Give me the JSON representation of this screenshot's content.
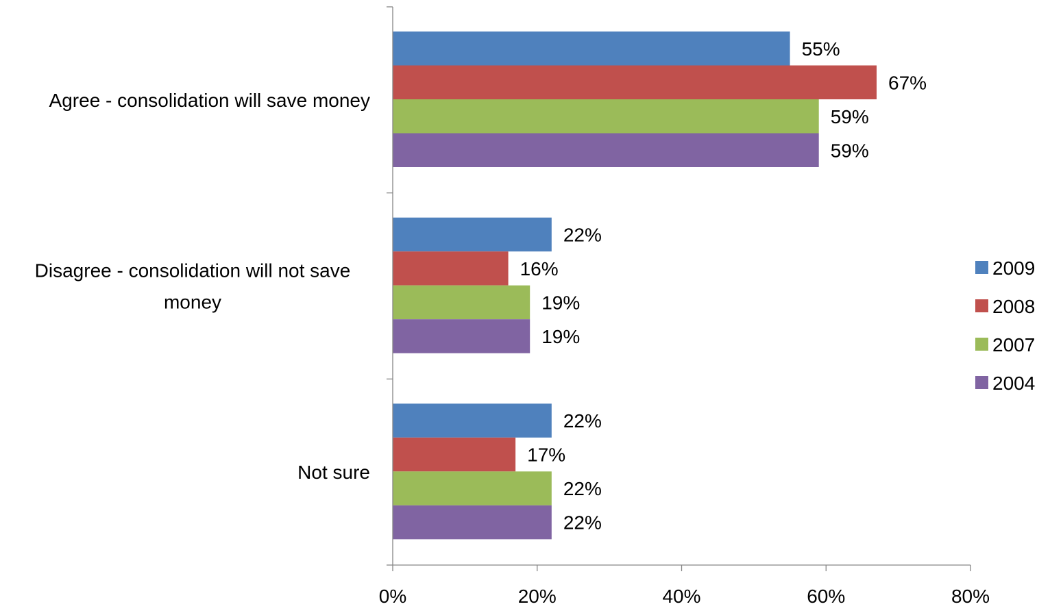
{
  "chart_data": {
    "type": "bar",
    "orientation": "horizontal",
    "categories": [
      "Agree - consolidation will save money",
      "Disagree - consolidation will not save money",
      "Not sure"
    ],
    "category_lines": [
      [
        "Agree - consolidation will save money"
      ],
      [
        "Disagree - consolidation will not save",
        "money"
      ],
      [
        "Not sure"
      ]
    ],
    "series": [
      {
        "name": "2009",
        "color": "#4F81BD",
        "values": [
          55,
          22,
          22
        ],
        "labels": [
          "55%",
          "22%",
          "22%"
        ]
      },
      {
        "name": "2008",
        "color": "#C0504D",
        "values": [
          67,
          16,
          17
        ],
        "labels": [
          "67%",
          "16%",
          "17%"
        ]
      },
      {
        "name": "2007",
        "color": "#9BBB59",
        "values": [
          59,
          19,
          22
        ],
        "labels": [
          "59%",
          "19%",
          "22%"
        ]
      },
      {
        "name": "2004",
        "color": "#8064A2",
        "values": [
          59,
          19,
          22
        ],
        "labels": [
          "59%",
          "19%",
          "22%"
        ]
      }
    ],
    "xlim": [
      0,
      80
    ],
    "x_ticks": [
      0,
      20,
      40,
      60,
      80
    ],
    "x_tick_labels": [
      "0%",
      "20%",
      "40%",
      "60%",
      "80%"
    ],
    "title": "",
    "xlabel": "",
    "ylabel": "",
    "grid": false,
    "legend_position": "right"
  }
}
